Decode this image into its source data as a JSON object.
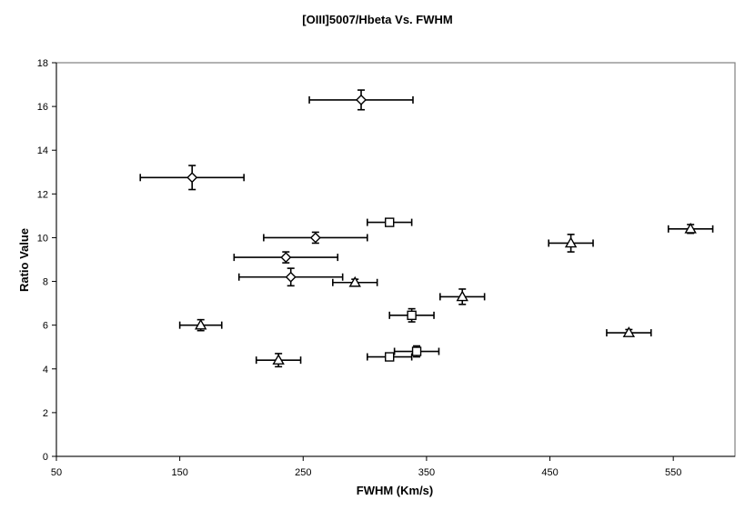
{
  "chart_data": {
    "type": "scatter",
    "title": "[OIII]5007/Hbeta Vs. FWHM",
    "xlabel": "FWHM (Km/s)",
    "ylabel": "Ratio Value",
    "xlim": [
      50,
      600
    ],
    "ylim": [
      0,
      18
    ],
    "x_ticks": [
      50,
      150,
      250,
      350,
      450,
      550
    ],
    "y_ticks": [
      0,
      2,
      4,
      6,
      8,
      10,
      12,
      14,
      16,
      18
    ],
    "x_tick_labels": [
      "50",
      "150",
      "250",
      "350",
      "450",
      "550"
    ],
    "y_tick_labels": [
      "0",
      "2",
      "4",
      "6",
      "8",
      "10",
      "12",
      "14",
      "16",
      "18"
    ],
    "grid": false,
    "legend": "none",
    "series": [
      {
        "marker": "diamond",
        "points": [
          {
            "x": 297,
            "y": 16.3,
            "xerr": 42,
            "yerr": 0.45
          },
          {
            "x": 160,
            "y": 12.75,
            "xerr": 42,
            "yerr": 0.55
          },
          {
            "x": 260,
            "y": 10.0,
            "xerr": 42,
            "yerr": 0.25
          },
          {
            "x": 236,
            "y": 9.1,
            "xerr": 42,
            "yerr": 0.25
          },
          {
            "x": 240,
            "y": 8.2,
            "xerr": 42,
            "yerr": 0.4
          }
        ]
      },
      {
        "marker": "square",
        "points": [
          {
            "x": 320,
            "y": 10.7,
            "xerr": 18,
            "yerr": 0.12
          },
          {
            "x": 338,
            "y": 6.45,
            "xerr": 18,
            "yerr": 0.3
          },
          {
            "x": 342,
            "y": 4.8,
            "xerr": 18,
            "yerr": 0.25
          },
          {
            "x": 320,
            "y": 4.55,
            "xerr": 18,
            "yerr": 0.12
          }
        ]
      },
      {
        "marker": "triangle",
        "points": [
          {
            "x": 292,
            "y": 7.95,
            "xerr": 18,
            "yerr": 0.15
          },
          {
            "x": 167,
            "y": 6.0,
            "xerr": 17,
            "yerr": 0.25
          },
          {
            "x": 230,
            "y": 4.4,
            "xerr": 18,
            "yerr": 0.3
          },
          {
            "x": 379,
            "y": 7.3,
            "xerr": 18,
            "yerr": 0.35
          },
          {
            "x": 467,
            "y": 9.75,
            "xerr": 18,
            "yerr": 0.4
          },
          {
            "x": 514,
            "y": 5.65,
            "xerr": 18,
            "yerr": 0.15
          },
          {
            "x": 564,
            "y": 10.4,
            "xerr": 18,
            "yerr": 0.2
          }
        ]
      }
    ]
  }
}
